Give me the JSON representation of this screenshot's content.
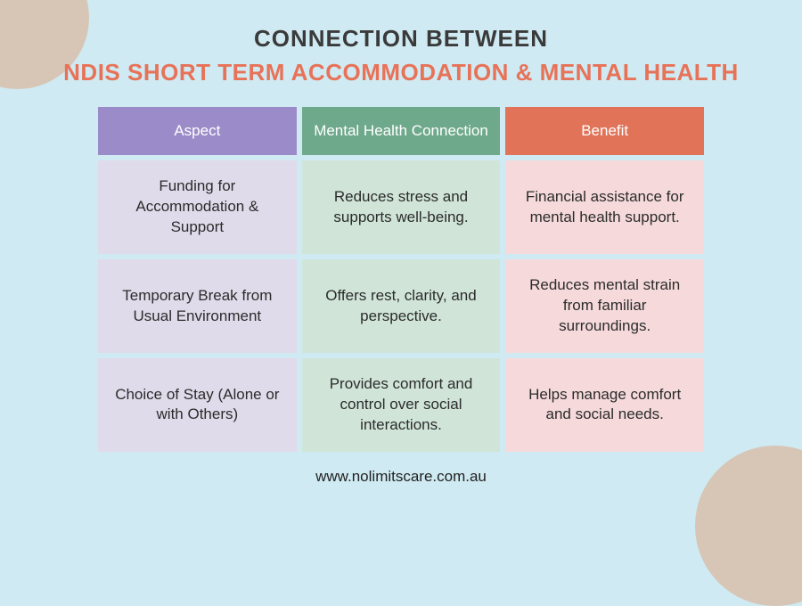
{
  "title": {
    "line1": "CONNECTION BETWEEN",
    "line2": "NDIS SHORT TERM ACCOMMODATION & MENTAL HEALTH"
  },
  "table": {
    "header_bg_colors": [
      "#9b8cc9",
      "#6fa98b",
      "#e07358"
    ],
    "body_bg_colors": [
      "#e0dbea",
      "#d0e5d8",
      "#f6dadb"
    ],
    "body_text_color": "#2b2b2b",
    "columns": [
      "Aspect",
      "Mental Health Connection",
      "Benefit"
    ],
    "rows": [
      [
        "Funding for Accommodation & Support",
        "Reduces stress and supports well-being.",
        "Financial assistance for mental health support."
      ],
      [
        "Temporary Break from Usual Environment",
        "Offers rest, clarity, and perspective.",
        "Reduces mental strain from familiar surroundings."
      ],
      [
        "Choice of Stay (Alone or with Others)",
        "Provides comfort and control over social interactions.",
        "Helps manage comfort and social needs."
      ]
    ]
  },
  "footer": {
    "url": "www.nolimitscare.com.au"
  },
  "decor": {
    "blob_color": "#d7c6b6",
    "background_color": "#cfeaf2"
  }
}
